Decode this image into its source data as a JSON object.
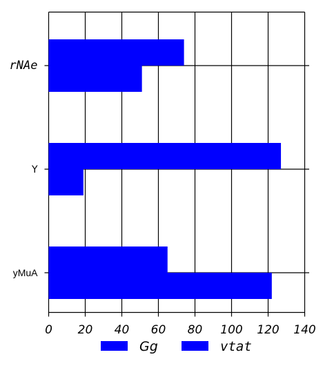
{
  "chart_data": {
    "type": "bar",
    "orientation": "horizontal",
    "categories": [
      "rNAe",
      "Y",
      "yMuA"
    ],
    "series": [
      {
        "name": "Gg",
        "values": [
          74,
          127,
          65
        ],
        "color": "#0000ff"
      },
      {
        "name": "vtat",
        "values": [
          51,
          19,
          122
        ],
        "color": "#0000ff"
      }
    ],
    "x_ticks": [
      "0",
      "20",
      "40",
      "60",
      "80",
      "100",
      "120",
      "140"
    ],
    "xlim": [
      0,
      140
    ],
    "grid": true,
    "legend_position": "bottom",
    "title": "",
    "xlabel": "",
    "ylabel": ""
  }
}
